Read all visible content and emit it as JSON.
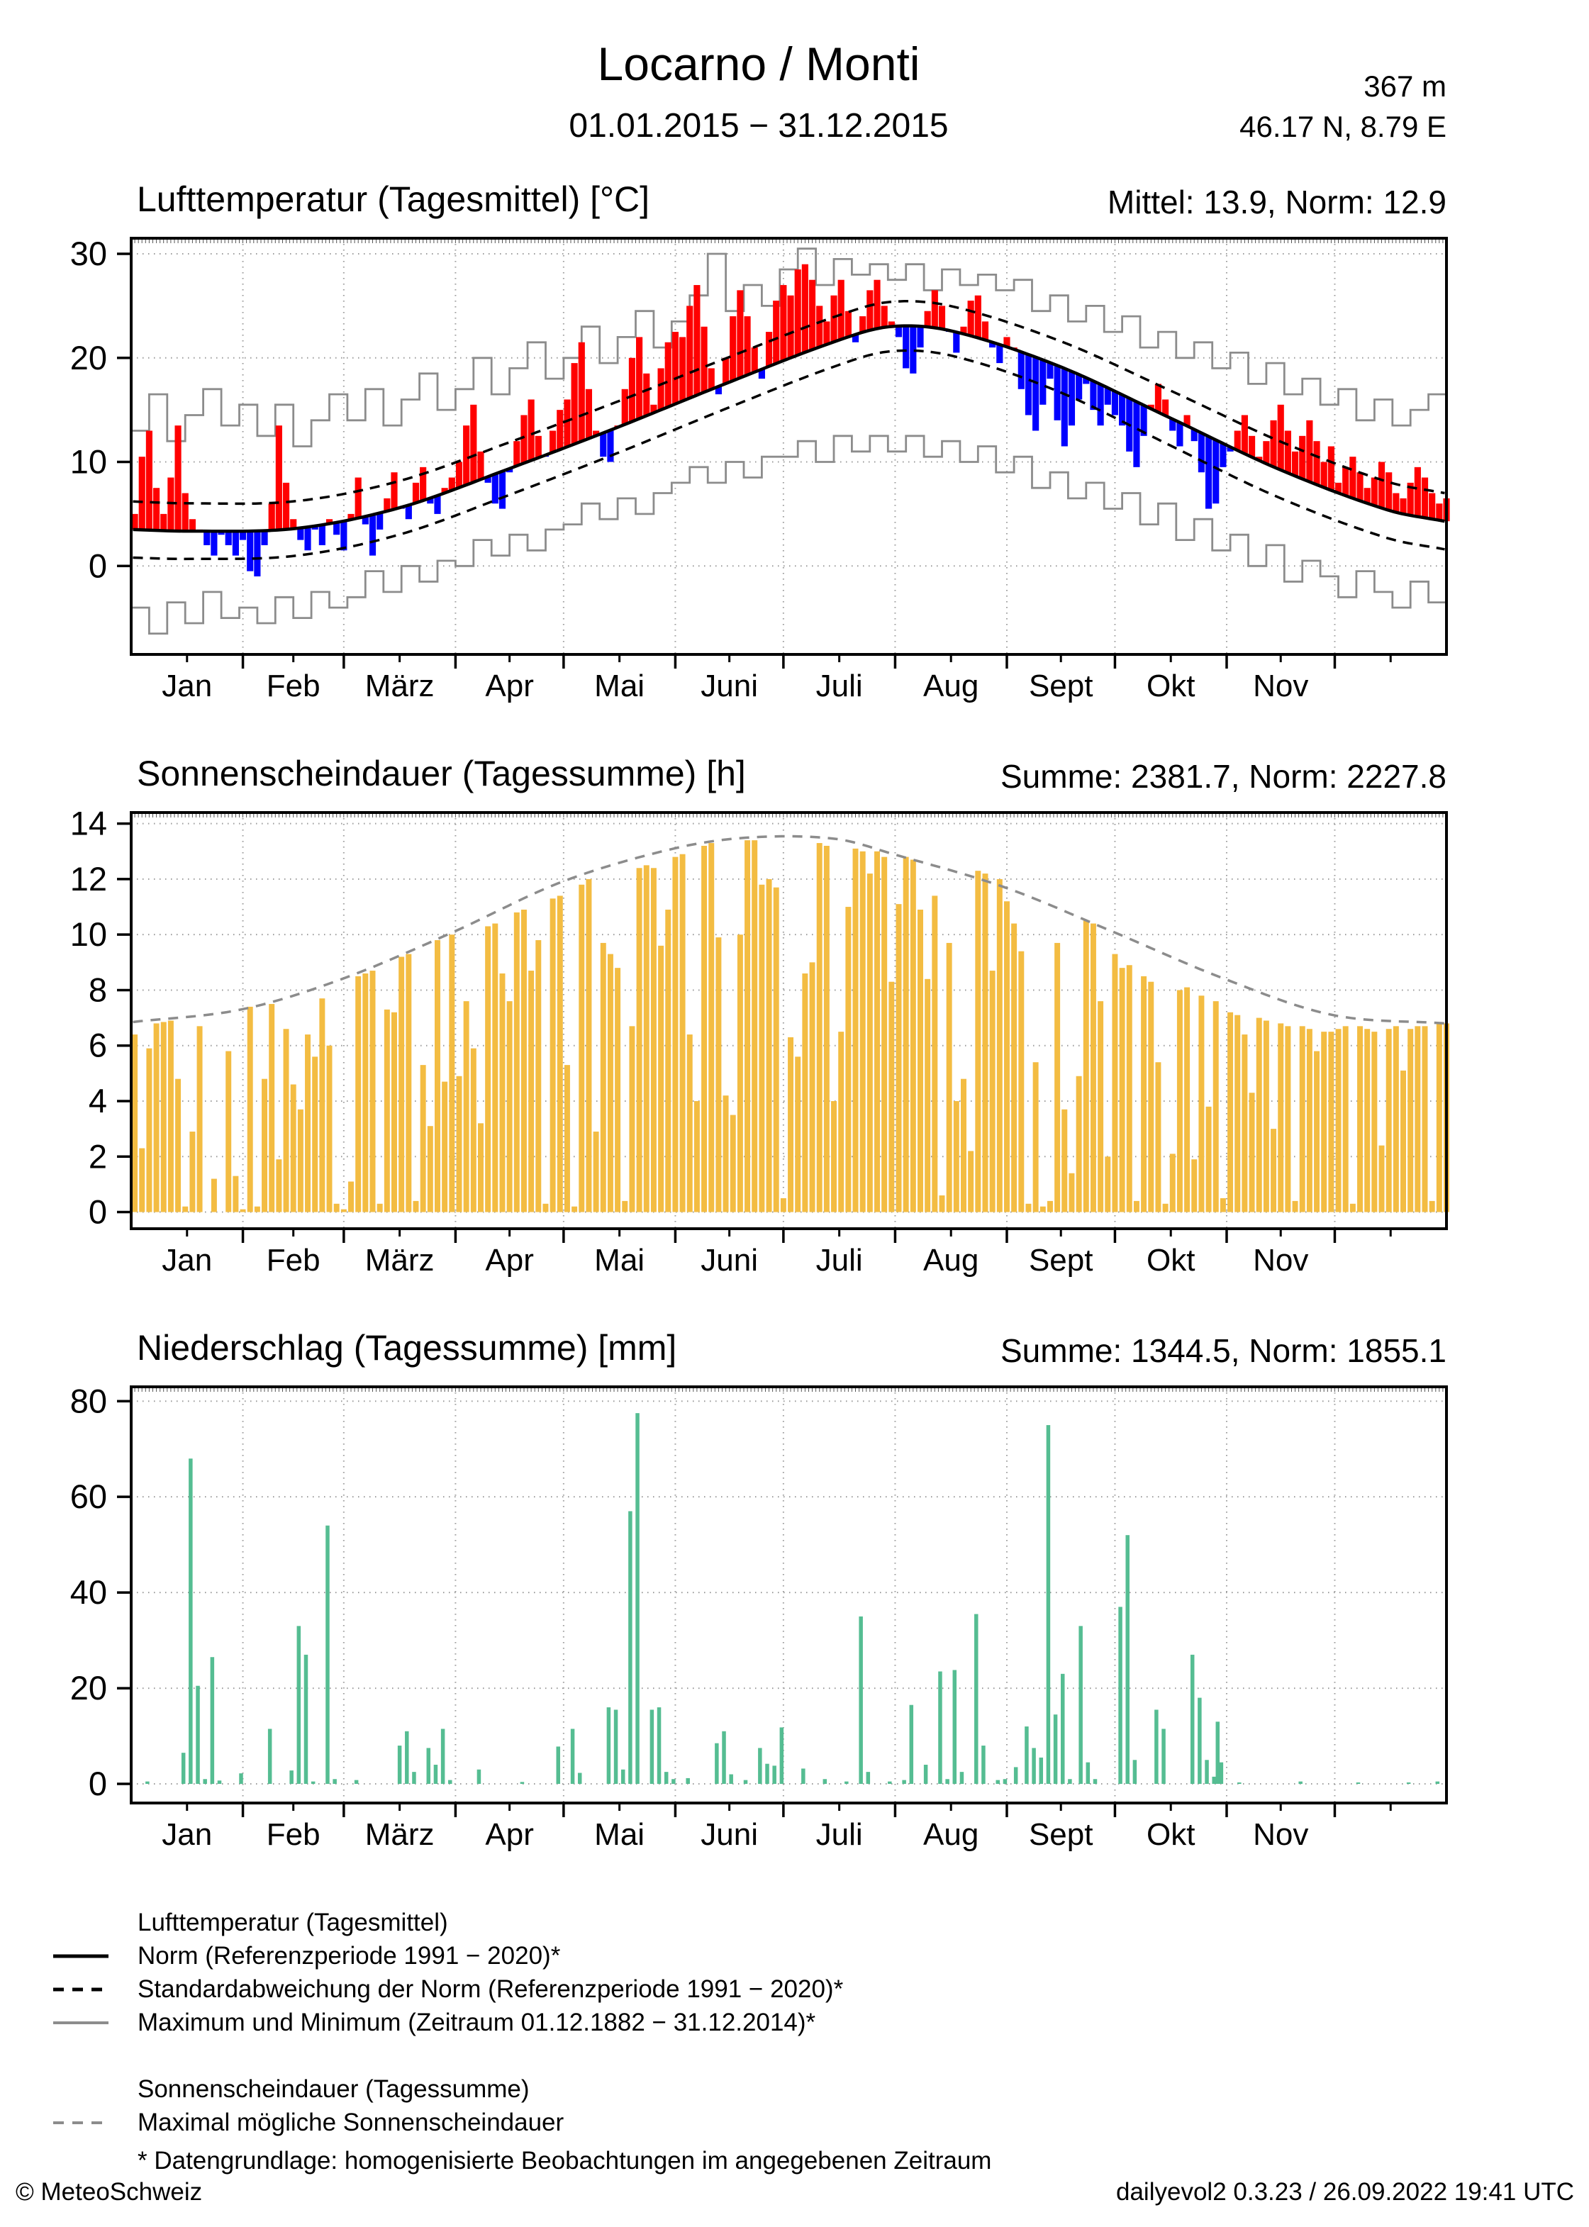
{
  "header": {
    "title": "Locarno / Monti",
    "period": "01.01.2015 − 31.12.2015",
    "altitude": "367 m",
    "coordinates": "46.17 N, 8.79 E"
  },
  "calendar": {
    "month_labels": [
      "Jan",
      "Feb",
      "März",
      "Apr",
      "Mai",
      "Juni",
      "Juli",
      "Aug",
      "Sept",
      "Okt",
      "Nov"
    ],
    "month_label_days": [
      16,
      45.5,
      75,
      105.5,
      136,
      166.5,
      197,
      228,
      258.5,
      289,
      319.5
    ],
    "month_start_days": [
      32,
      60,
      91,
      121,
      152,
      182,
      213,
      244,
      274,
      305,
      335
    ],
    "minor_tick_days": [
      16,
      45.5,
      75,
      105.5,
      136,
      166.5,
      197,
      228,
      258.5,
      289,
      319.5,
      350
    ],
    "days_in_year": 365
  },
  "chart_data": [
    {
      "id": "temperature",
      "type": "bar",
      "title": "Lufttemperatur (Tagesmittel) [°C]",
      "stats": "Mittel: 13.9, Norm: 12.9",
      "unit": "°C",
      "ylim": [
        -8.5,
        31.5
      ],
      "yticks": [
        0,
        10,
        20,
        30
      ],
      "sample_step_days": 2,
      "daily_mean_2015": [
        5.0,
        10.5,
        13.0,
        7.5,
        5.0,
        8.5,
        13.5,
        7.0,
        4.5,
        3.5,
        2.0,
        1.0,
        3.0,
        2.0,
        1.0,
        2.5,
        -0.5,
        -1.0,
        2.0,
        6.0,
        13.5,
        8.0,
        4.5,
        2.5,
        1.5,
        3.5,
        2.0,
        4.5,
        3.0,
        1.5,
        5.0,
        8.5,
        4.0,
        1.0,
        3.5,
        6.5,
        9.0,
        5.5,
        4.5,
        8.0,
        9.5,
        6.0,
        5.0,
        7.5,
        8.5,
        10.0,
        13.5,
        15.5,
        11.0,
        8.0,
        6.0,
        5.5,
        9.0,
        12.0,
        14.5,
        16.0,
        12.5,
        10.5,
        13.0,
        15.0,
        16.0,
        19.5,
        21.5,
        17.0,
        13.0,
        10.5,
        10.0,
        13.5,
        17.0,
        20.0,
        22.0,
        18.5,
        15.5,
        19.0,
        21.5,
        22.5,
        22.0,
        25.0,
        27.0,
        23.0,
        19.0,
        16.5,
        20.0,
        24.0,
        26.5,
        24.0,
        21.0,
        18.0,
        22.5,
        25.5,
        27.0,
        26.0,
        28.5,
        29.0,
        27.5,
        25.0,
        23.5,
        26.0,
        27.5,
        24.5,
        21.5,
        24.0,
        26.5,
        27.5,
        25.0,
        23.5,
        22.0,
        19.0,
        18.5,
        21.0,
        24.5,
        26.5,
        25.0,
        22.5,
        20.5,
        23.0,
        25.5,
        26.0,
        23.5,
        21.0,
        19.5,
        22.0,
        21.0,
        17.0,
        14.5,
        13.0,
        15.5,
        18.0,
        14.0,
        11.5,
        13.5,
        16.0,
        17.5,
        15.0,
        13.5,
        15.5,
        14.5,
        13.5,
        11.0,
        9.5,
        12.5,
        15.5,
        17.5,
        16.0,
        13.0,
        11.5,
        14.5,
        12.0,
        9.0,
        5.5,
        6.0,
        9.5,
        11.0,
        13.0,
        14.5,
        12.5,
        10.5,
        12.0,
        14.0,
        15.5,
        13.0,
        11.0,
        12.5,
        14.0,
        12.0,
        10.0,
        11.5,
        8.0,
        9.5,
        10.5,
        9.0,
        7.5,
        8.5,
        10.0,
        9.0,
        7.0,
        6.5,
        8.0,
        9.5,
        8.5,
        7.0,
        6.0,
        6.5
      ],
      "norm": {
        "days": [
          1,
          16,
          46,
          75,
          105,
          136,
          166,
          196,
          211,
          228,
          258,
          289,
          319,
          349,
          365
        ],
        "values": [
          3.5,
          3.35,
          3.6,
          5.6,
          9.3,
          13.4,
          17.6,
          21.6,
          23.0,
          22.6,
          19.2,
          14.2,
          9.3,
          5.4,
          4.3
        ]
      },
      "std": {
        "days": [
          1,
          60,
          121,
          181,
          243,
          304,
          365
        ],
        "values": [
          2.7,
          2.6,
          2.5,
          2.4,
          2.4,
          2.7,
          2.7
        ]
      },
      "record_step_days": 5,
      "record_max": [
        13,
        16.5,
        12,
        14.5,
        17,
        13.5,
        15.5,
        12.5,
        15.5,
        11.5,
        14,
        16.5,
        14,
        17,
        13.5,
        16,
        18.5,
        15,
        17,
        20,
        16.5,
        19,
        21.5,
        18,
        20,
        23,
        19.5,
        22,
        24.5,
        21,
        23.5,
        26,
        30,
        24.5,
        27,
        25,
        28.5,
        30.5,
        27,
        29.5,
        28,
        29,
        27.5,
        29,
        26.5,
        28.5,
        27,
        28,
        26.5,
        27.5,
        24.5,
        26,
        23.5,
        25,
        22.5,
        24,
        21,
        22.5,
        20,
        21.5,
        19,
        20.5,
        17.5,
        19.5,
        16.5,
        18,
        15.5,
        17,
        14,
        16,
        13.5,
        15,
        16.5
      ],
      "record_min": [
        -4,
        -6.5,
        -3.5,
        -5.5,
        -2.5,
        -5,
        -4,
        -5.5,
        -3,
        -5,
        -2.5,
        -4,
        -3,
        -0.5,
        -2.5,
        0,
        -1.5,
        0.5,
        0,
        2.5,
        1,
        3,
        1.5,
        3.5,
        4,
        6,
        4.5,
        6.5,
        5,
        7,
        8,
        9.5,
        8,
        10,
        8.5,
        10.5,
        10.5,
        12,
        10,
        12.5,
        11,
        12.5,
        11,
        12.5,
        10.5,
        12,
        10,
        11.5,
        9,
        10.5,
        7.5,
        9,
        6.5,
        8,
        5.5,
        7,
        4,
        6,
        2.5,
        4.5,
        1.5,
        3,
        0,
        2,
        -1.5,
        0.5,
        -1,
        -3,
        -0.5,
        -2.5,
        -4,
        -1.5,
        -3.5
      ],
      "colors": {
        "above_norm": "#ff0000",
        "below_norm": "#0000ff",
        "norm_line": "#000000",
        "std_line": "#000000",
        "record_line": "#8c8c8c"
      }
    },
    {
      "id": "sunshine",
      "type": "bar",
      "title": "Sonnenscheindauer (Tagessumme) [h]",
      "stats": "Summe: 2381.7, Norm: 2227.8",
      "unit": "h",
      "ylim": [
        -0.6,
        14.4
      ],
      "yticks": [
        0,
        2,
        4,
        6,
        8,
        10,
        12,
        14
      ],
      "sample_step_days": 2,
      "daily_sum_2015": [
        6.4,
        2.3,
        5.9,
        6.8,
        6.85,
        6.9,
        4.8,
        0.2,
        2.9,
        6.7,
        0,
        1.2,
        0,
        5.8,
        1.3,
        0.1,
        7.4,
        0.2,
        4.8,
        7.5,
        1.9,
        6.6,
        4.6,
        3.7,
        6.4,
        5.6,
        7.7,
        6.0,
        0.3,
        0.1,
        1.1,
        8.5,
        8.6,
        8.7,
        0.3,
        7.3,
        7.2,
        9.2,
        9.3,
        0.4,
        5.3,
        3.1,
        9.8,
        4.7,
        10.0,
        4.9,
        7.6,
        5.9,
        3.2,
        10.3,
        10.4,
        8.6,
        7.6,
        10.8,
        10.9,
        8.7,
        9.8,
        0.3,
        11.3,
        11.4,
        5.3,
        0.2,
        11.8,
        12.0,
        2.9,
        9.7,
        9.3,
        8.8,
        0.4,
        6.7,
        12.4,
        12.5,
        12.4,
        9.6,
        10.9,
        12.8,
        12.9,
        6.4,
        4.0,
        13.2,
        13.3,
        9.9,
        4.2,
        3.5,
        10.0,
        13.4,
        13.4,
        11.8,
        12.0,
        11.7,
        0.5,
        6.3,
        5.6,
        8.6,
        9.0,
        13.3,
        13.2,
        4.0,
        6.5,
        11.0,
        13.1,
        13.0,
        12.2,
        13.0,
        12.8,
        8.3,
        11.1,
        12.8,
        12.7,
        10.9,
        8.4,
        11.4,
        0.6,
        9.7,
        4.0,
        4.8,
        2.2,
        12.3,
        12.2,
        8.7,
        12.0,
        11.2,
        10.4,
        9.4,
        0.3,
        5.4,
        0.2,
        0.4,
        9.7,
        3.7,
        1.4,
        4.9,
        10.5,
        10.4,
        7.6,
        2.0,
        9.3,
        8.8,
        8.9,
        0.4,
        8.5,
        8.3,
        5.4,
        0.3,
        2.1,
        8.0,
        8.1,
        1.9,
        7.8,
        3.8,
        7.6,
        0.5,
        7.2,
        7.1,
        6.4,
        4.3,
        7.0,
        6.9,
        3.0,
        6.8,
        6.7,
        0.4,
        6.7,
        6.6,
        5.8,
        6.5,
        6.5,
        6.6,
        6.7,
        0.3,
        6.7,
        6.6,
        6.5,
        2.4,
        6.6,
        6.7,
        5.1,
        6.6,
        6.7,
        6.7,
        0.4,
        6.8,
        6.8
      ],
      "max_possible": {
        "days": [
          1,
          31,
          59,
          90,
          120,
          151,
          172,
          196,
          212,
          243,
          273,
          304,
          334,
          365
        ],
        "values": [
          6.85,
          7.3,
          8.4,
          10.1,
          11.9,
          13.1,
          13.5,
          13.45,
          12.9,
          11.7,
          10.1,
          8.4,
          7.1,
          6.8
        ]
      },
      "colors": {
        "bars": "#f3bc42",
        "max_line": "#8c8c8c"
      }
    },
    {
      "id": "precipitation",
      "type": "bar",
      "title": "Niederschlag (Tagessumme) [mm]",
      "stats": "Summe: 1344.5, Norm: 1855.1",
      "unit": "mm",
      "ylim": [
        -4,
        83
      ],
      "yticks": [
        0,
        20,
        40,
        60,
        80
      ],
      "events": [
        [
          5,
          0.5
        ],
        [
          15,
          6.5
        ],
        [
          17,
          68
        ],
        [
          19,
          20.5
        ],
        [
          21,
          1
        ],
        [
          23,
          26.5
        ],
        [
          25,
          0.7
        ],
        [
          31,
          2.2
        ],
        [
          39,
          11.5
        ],
        [
          45,
          2.8
        ],
        [
          47,
          33
        ],
        [
          49,
          27
        ],
        [
          51,
          0.5
        ],
        [
          55,
          54
        ],
        [
          57,
          1
        ],
        [
          63,
          0.8
        ],
        [
          75,
          8
        ],
        [
          77,
          11
        ],
        [
          79,
          2.5
        ],
        [
          83,
          7.5
        ],
        [
          85,
          4
        ],
        [
          87,
          11.5
        ],
        [
          89,
          0.8
        ],
        [
          97,
          3
        ],
        [
          109,
          0.4
        ],
        [
          119,
          7.8
        ],
        [
          123,
          11.5
        ],
        [
          125,
          2.3
        ],
        [
          133,
          16
        ],
        [
          135,
          15.5
        ],
        [
          137,
          3
        ],
        [
          139,
          57
        ],
        [
          141,
          77.5
        ],
        [
          145,
          15.5
        ],
        [
          147,
          16
        ],
        [
          149,
          2.5
        ],
        [
          151,
          1
        ],
        [
          155,
          1.2
        ],
        [
          163,
          8.5
        ],
        [
          165,
          11
        ],
        [
          167,
          2
        ],
        [
          171,
          0.8
        ],
        [
          175,
          7.5
        ],
        [
          177,
          4.2
        ],
        [
          179,
          3.8
        ],
        [
          181,
          11.8
        ],
        [
          187,
          3.2
        ],
        [
          193,
          1
        ],
        [
          199,
          0.5
        ],
        [
          203,
          35
        ],
        [
          205,
          2.5
        ],
        [
          211,
          0.5
        ],
        [
          215,
          0.8
        ],
        [
          217,
          16.5
        ],
        [
          221,
          4
        ],
        [
          225,
          23.5
        ],
        [
          227,
          1
        ],
        [
          229,
          23.8
        ],
        [
          231,
          2.5
        ],
        [
          235,
          35.5
        ],
        [
          237,
          8
        ],
        [
          241,
          0.8
        ],
        [
          243,
          1
        ],
        [
          246,
          3.5
        ],
        [
          249,
          12
        ],
        [
          251,
          7.5
        ],
        [
          253,
          5.5
        ],
        [
          255,
          75
        ],
        [
          257,
          14.5
        ],
        [
          259,
          23
        ],
        [
          261,
          1
        ],
        [
          264,
          33
        ],
        [
          266,
          4.5
        ],
        [
          268,
          1
        ],
        [
          275,
          37
        ],
        [
          277,
          52
        ],
        [
          279,
          5
        ],
        [
          285,
          15.5
        ],
        [
          287,
          11.5
        ],
        [
          295,
          27
        ],
        [
          297,
          18
        ],
        [
          299,
          5
        ],
        [
          301,
          1.5
        ],
        [
          302,
          13
        ],
        [
          303,
          4.5
        ],
        [
          308,
          0.3
        ],
        [
          325,
          0.5
        ],
        [
          341,
          0.3
        ],
        [
          355,
          0.3
        ],
        [
          363,
          0.5
        ]
      ],
      "colors": {
        "bars": "#55bd92"
      }
    }
  ],
  "legend": {
    "temperature": {
      "header": "Lufttemperatur (Tagesmittel)",
      "norm": "Norm (Referenzperiode 1991 − 2020)*",
      "std": "Standardabweichung der Norm (Referenzperiode 1991 − 2020)*",
      "extremes": "Maximum und Minimum (Zeitraum 01.12.1882 − 31.12.2014)*"
    },
    "sunshine": {
      "header": "Sonnenscheindauer (Tagessumme)",
      "max_possible": "Maximal mögliche Sonnenscheindauer"
    }
  },
  "footnote": "* Datengrundlage: homogenisierte Beobachtungen im angegebenen Zeitraum",
  "footer": {
    "copyright": "© MeteoSchweiz",
    "generator": "dailyevol2 0.3.23 / 26.09.2022 19:41 UTC"
  }
}
